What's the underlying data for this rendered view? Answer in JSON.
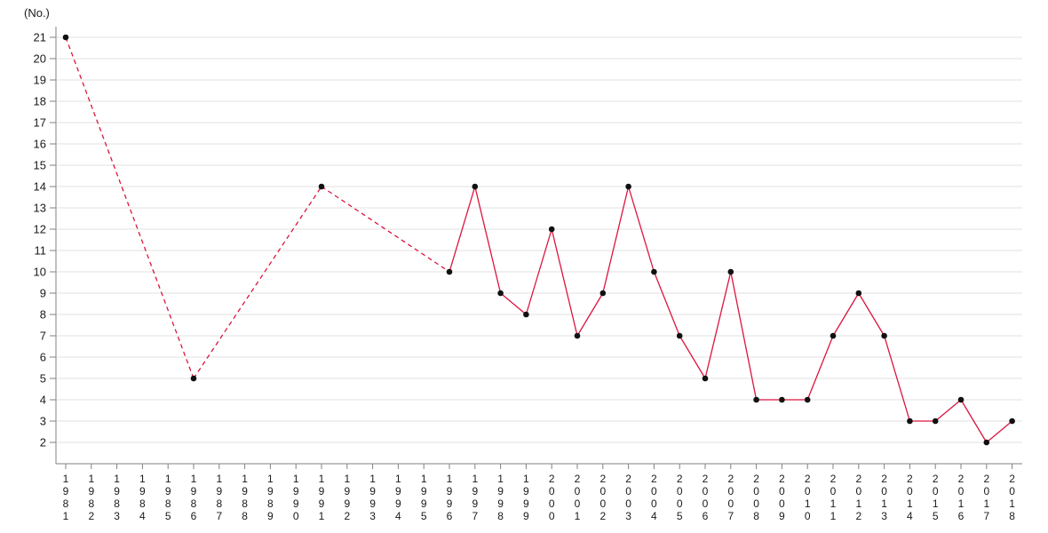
{
  "page": {
    "background": "#ffffff"
  },
  "chart_data": {
    "type": "line",
    "title": "",
    "xlabel": "",
    "ylabel": "(No.)",
    "legend": "none",
    "grid": "horizontal",
    "colors": {
      "line": "#dc143c",
      "marker": "#111111",
      "gridline": "#e0e0e0",
      "axis": "#808080",
      "tick_text": "#1a1a1a",
      "background": "#ffffff"
    },
    "categories": [
      1981,
      1982,
      1983,
      1984,
      1985,
      1986,
      1987,
      1988,
      1989,
      1990,
      1991,
      1992,
      1993,
      1994,
      1995,
      1996,
      1997,
      1998,
      1999,
      2000,
      2001,
      2002,
      2003,
      2004,
      2005,
      2006,
      2007,
      2008,
      2009,
      2010,
      2011,
      2012,
      2013,
      2014,
      2015,
      2016,
      2017,
      2018
    ],
    "y_ticks": [
      2,
      3,
      4,
      5,
      6,
      7,
      8,
      9,
      10,
      11,
      12,
      13,
      14,
      15,
      16,
      17,
      18,
      19,
      20,
      21
    ],
    "ylim": [
      1,
      21.5
    ],
    "series": [
      {
        "name": "No.",
        "points": [
          {
            "year": 1981,
            "value": 21
          },
          {
            "year": 1986,
            "value": 5
          },
          {
            "year": 1991,
            "value": 14
          },
          {
            "year": 1996,
            "value": 10
          },
          {
            "year": 1997,
            "value": 14
          },
          {
            "year": 1998,
            "value": 9
          },
          {
            "year": 1999,
            "value": 8
          },
          {
            "year": 2000,
            "value": 12
          },
          {
            "year": 2001,
            "value": 7
          },
          {
            "year": 2002,
            "value": 9
          },
          {
            "year": 2003,
            "value": 14
          },
          {
            "year": 2004,
            "value": 10
          },
          {
            "year": 2005,
            "value": 7
          },
          {
            "year": 2006,
            "value": 5
          },
          {
            "year": 2007,
            "value": 10
          },
          {
            "year": 2008,
            "value": 4
          },
          {
            "year": 2009,
            "value": 4
          },
          {
            "year": 2010,
            "value": 4
          },
          {
            "year": 2011,
            "value": 7
          },
          {
            "year": 2012,
            "value": 9
          },
          {
            "year": 2013,
            "value": 7
          },
          {
            "year": 2014,
            "value": 3
          },
          {
            "year": 2015,
            "value": 3
          },
          {
            "year": 2016,
            "value": 4
          },
          {
            "year": 2017,
            "value": 2
          },
          {
            "year": 2018,
            "value": 3
          }
        ],
        "gap_segments_dashed": true
      }
    ]
  }
}
